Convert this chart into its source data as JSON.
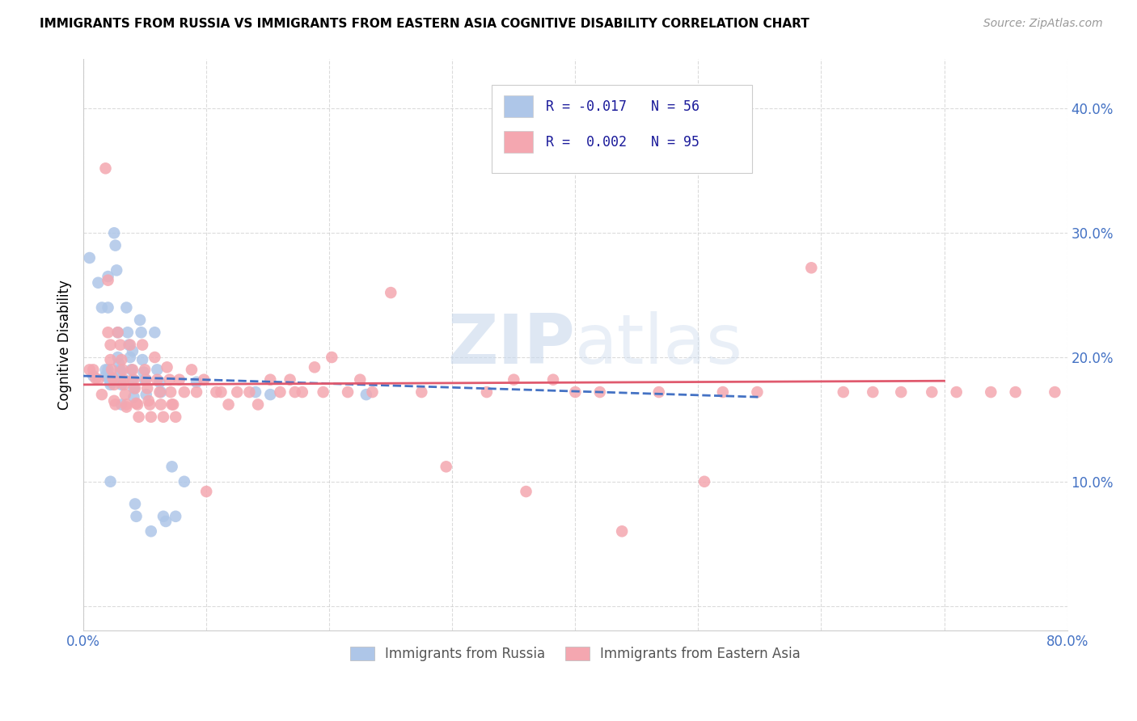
{
  "title": "IMMIGRANTS FROM RUSSIA VS IMMIGRANTS FROM EASTERN ASIA COGNITIVE DISABILITY CORRELATION CHART",
  "source": "Source: ZipAtlas.com",
  "ylabel": "Cognitive Disability",
  "xlim": [
    0.0,
    0.8
  ],
  "ylim": [
    -0.02,
    0.44
  ],
  "color_russia": "#aec6e8",
  "color_asia": "#f4a7b0",
  "color_russia_line": "#4472c4",
  "color_asia_line": "#e05a6e",
  "watermark_zip": "ZIP",
  "watermark_atlas": "atlas",
  "russia_x": [
    0.005,
    0.008,
    0.012,
    0.015,
    0.018,
    0.018,
    0.02,
    0.02,
    0.02,
    0.021,
    0.021,
    0.022,
    0.022,
    0.022,
    0.025,
    0.026,
    0.027,
    0.028,
    0.028,
    0.029,
    0.03,
    0.03,
    0.03,
    0.031,
    0.031,
    0.035,
    0.036,
    0.037,
    0.038,
    0.039,
    0.04,
    0.04,
    0.041,
    0.041,
    0.042,
    0.043,
    0.046,
    0.047,
    0.048,
    0.049,
    0.05,
    0.051,
    0.055,
    0.058,
    0.06,
    0.062,
    0.063,
    0.065,
    0.067,
    0.072,
    0.075,
    0.082,
    0.092,
    0.14,
    0.152,
    0.23
  ],
  "russia_y": [
    0.28,
    0.185,
    0.26,
    0.24,
    0.19,
    0.185,
    0.265,
    0.24,
    0.19,
    0.185,
    0.182,
    0.18,
    0.178,
    0.1,
    0.3,
    0.29,
    0.27,
    0.22,
    0.2,
    0.195,
    0.19,
    0.188,
    0.182,
    0.178,
    0.162,
    0.24,
    0.22,
    0.21,
    0.2,
    0.19,
    0.205,
    0.182,
    0.175,
    0.168,
    0.082,
    0.072,
    0.23,
    0.22,
    0.198,
    0.188,
    0.182,
    0.17,
    0.06,
    0.22,
    0.19,
    0.18,
    0.172,
    0.072,
    0.068,
    0.112,
    0.072,
    0.1,
    0.18,
    0.172,
    0.17,
    0.17
  ],
  "asia_x": [
    0.005,
    0.008,
    0.01,
    0.012,
    0.015,
    0.018,
    0.02,
    0.02,
    0.022,
    0.022,
    0.023,
    0.024,
    0.025,
    0.025,
    0.026,
    0.028,
    0.03,
    0.031,
    0.032,
    0.033,
    0.033,
    0.034,
    0.035,
    0.035,
    0.038,
    0.04,
    0.041,
    0.042,
    0.043,
    0.044,
    0.045,
    0.048,
    0.05,
    0.051,
    0.052,
    0.053,
    0.054,
    0.055,
    0.058,
    0.06,
    0.062,
    0.063,
    0.065,
    0.068,
    0.07,
    0.071,
    0.072,
    0.073,
    0.075,
    0.078,
    0.082,
    0.088,
    0.092,
    0.098,
    0.1,
    0.108,
    0.112,
    0.118,
    0.125,
    0.135,
    0.142,
    0.152,
    0.16,
    0.168,
    0.172,
    0.178,
    0.188,
    0.195,
    0.202,
    0.215,
    0.225,
    0.235,
    0.25,
    0.275,
    0.295,
    0.328,
    0.35,
    0.36,
    0.382,
    0.4,
    0.42,
    0.438,
    0.468,
    0.505,
    0.52,
    0.548,
    0.592,
    0.618,
    0.642,
    0.665,
    0.69,
    0.71,
    0.738,
    0.758,
    0.79
  ],
  "asia_y": [
    0.19,
    0.19,
    0.183,
    0.182,
    0.17,
    0.352,
    0.262,
    0.22,
    0.21,
    0.198,
    0.19,
    0.183,
    0.178,
    0.165,
    0.162,
    0.22,
    0.21,
    0.198,
    0.19,
    0.182,
    0.178,
    0.17,
    0.162,
    0.16,
    0.21,
    0.19,
    0.182,
    0.175,
    0.163,
    0.162,
    0.152,
    0.21,
    0.19,
    0.182,
    0.175,
    0.165,
    0.162,
    0.152,
    0.2,
    0.182,
    0.172,
    0.162,
    0.152,
    0.192,
    0.182,
    0.172,
    0.162,
    0.162,
    0.152,
    0.182,
    0.172,
    0.19,
    0.172,
    0.182,
    0.092,
    0.172,
    0.172,
    0.162,
    0.172,
    0.172,
    0.162,
    0.182,
    0.172,
    0.182,
    0.172,
    0.172,
    0.192,
    0.172,
    0.2,
    0.172,
    0.182,
    0.172,
    0.252,
    0.172,
    0.112,
    0.172,
    0.182,
    0.092,
    0.182,
    0.172,
    0.172,
    0.06,
    0.172,
    0.1,
    0.172,
    0.172,
    0.272,
    0.172,
    0.172,
    0.172,
    0.172,
    0.172,
    0.172,
    0.172,
    0.172
  ],
  "russia_line_x": [
    0.0,
    0.55
  ],
  "russia_line_y": [
    0.185,
    0.168
  ],
  "asia_line_x": [
    0.0,
    0.7
  ],
  "asia_line_y": [
    0.178,
    0.181
  ]
}
